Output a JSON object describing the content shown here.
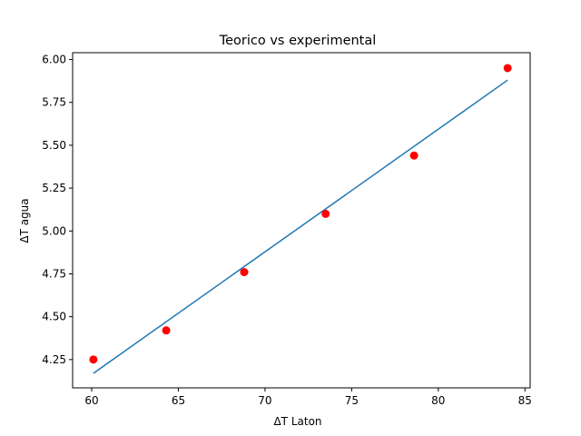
{
  "chart_data": {
    "type": "scatter",
    "title": "Teorico vs experimental",
    "xlabel": "ΔT Laton",
    "ylabel": "ΔT agua",
    "xlim": [
      58.9,
      85.3
    ],
    "ylim": [
      4.085,
      6.04
    ],
    "grid": false,
    "x_ticks": [
      60,
      65,
      70,
      75,
      80,
      85
    ],
    "x_tick_labels": [
      "60",
      "65",
      "70",
      "75",
      "80",
      "85"
    ],
    "y_ticks": [
      4.25,
      4.5,
      4.75,
      5.0,
      5.25,
      5.5,
      5.75,
      6.0
    ],
    "y_tick_labels": [
      "4.25",
      "4.50",
      "4.75",
      "5.00",
      "5.25",
      "5.50",
      "5.75",
      "6.00"
    ],
    "series": [
      {
        "type": "line",
        "color": "#1f77b4",
        "x": [
          60.1,
          84.0
        ],
        "y": [
          4.17,
          5.88
        ]
      },
      {
        "type": "scatter",
        "color": "#ff0000",
        "x": [
          60.1,
          64.3,
          68.8,
          73.5,
          78.6,
          84.0
        ],
        "y": [
          4.25,
          4.42,
          4.76,
          5.1,
          5.44,
          5.95
        ]
      }
    ]
  }
}
